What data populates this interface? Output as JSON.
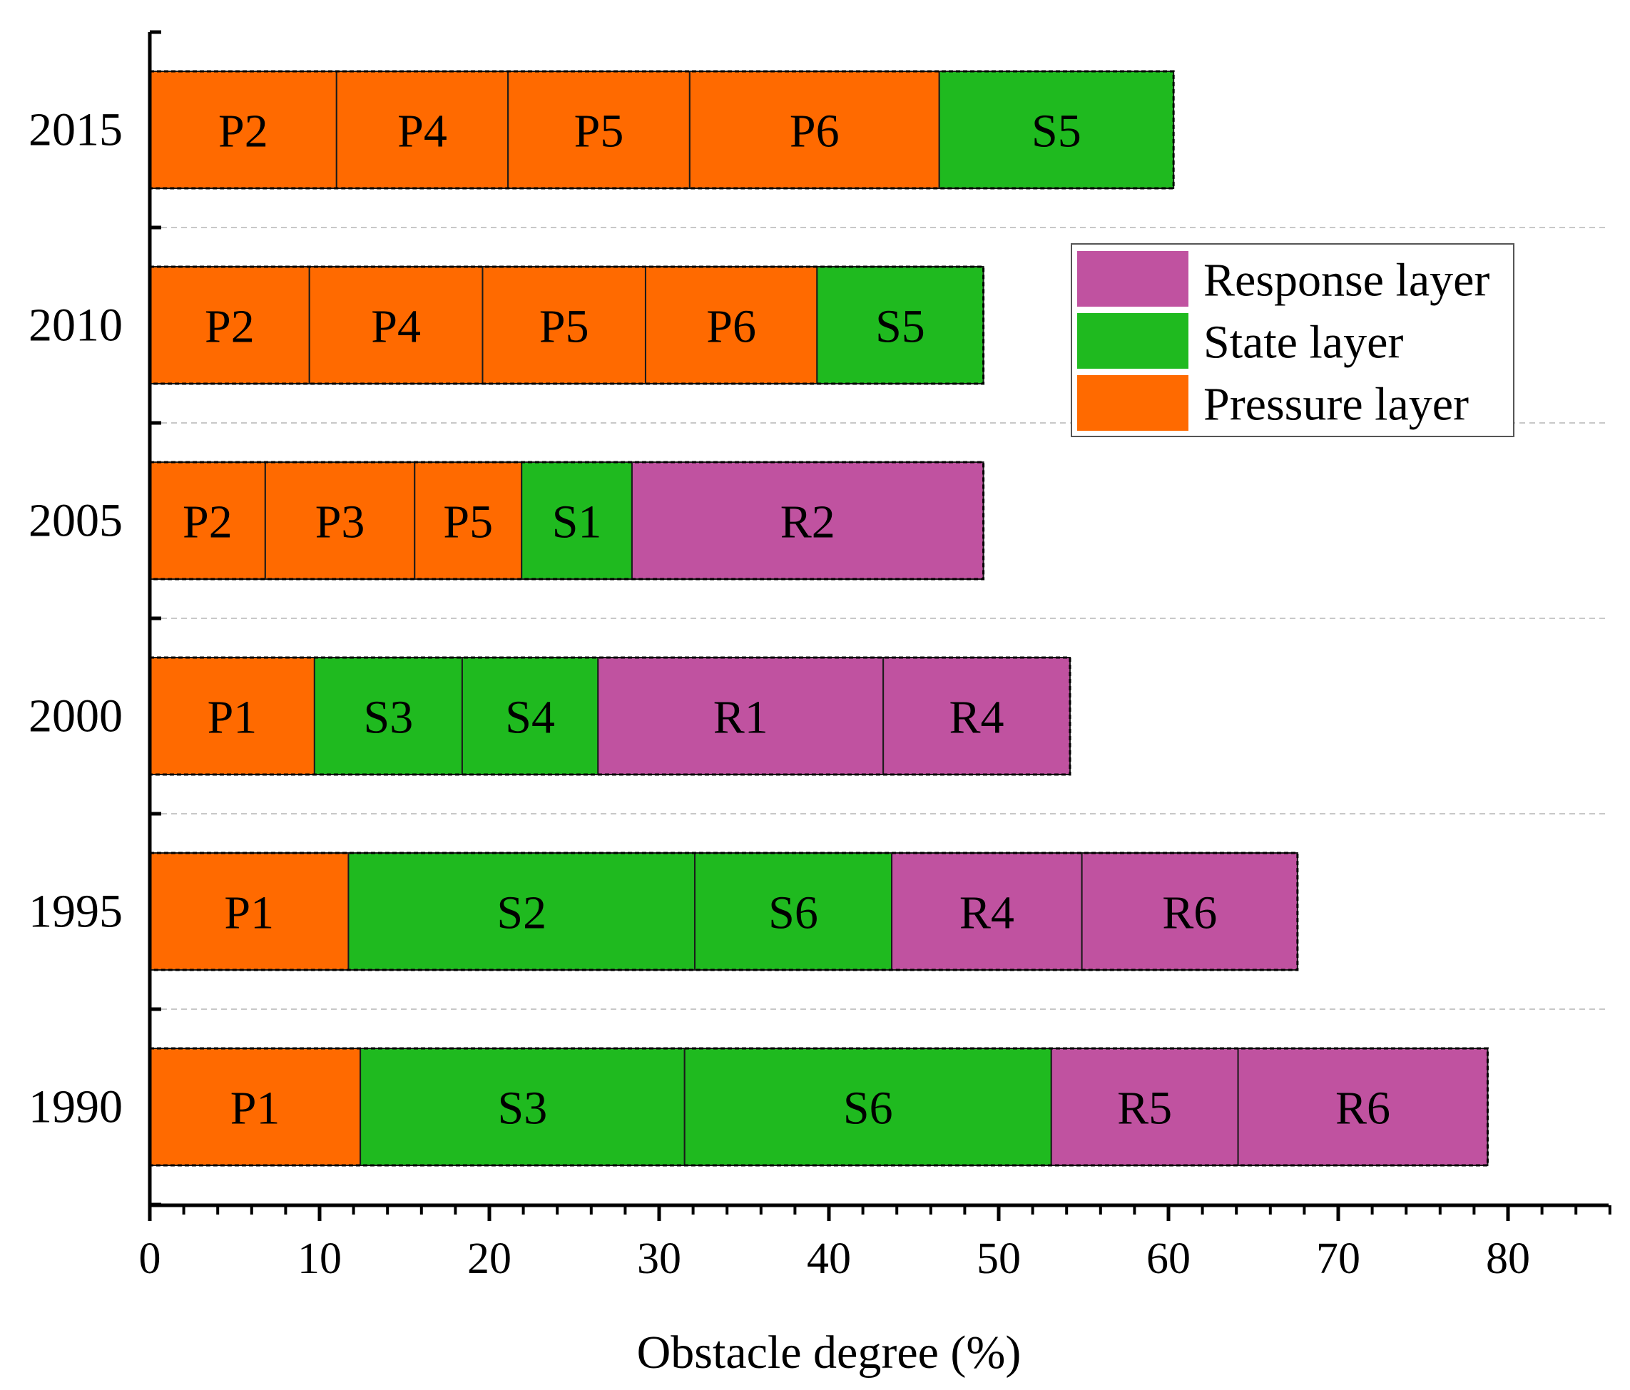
{
  "chart_data": {
    "type": "bar",
    "orientation": "horizontal",
    "stacked": true,
    "xlabel": "Obstacle degree (%)",
    "ylabel": "",
    "xlim": [
      0,
      86
    ],
    "xticks": [
      "0",
      "10",
      "20",
      "30",
      "40",
      "50",
      "60",
      "70",
      "80"
    ],
    "grid": "horizontal dashed separators between bars",
    "legend_position": "top-right",
    "layers": {
      "pressure": {
        "name": "Pressure layer",
        "color": "#ff6a00"
      },
      "state": {
        "name": "State layer",
        "color": "#1fba1f"
      },
      "response": {
        "name": "Response layer",
        "color": "#c052a0"
      }
    },
    "legend": [
      {
        "layer": "response",
        "label": "Response layer"
      },
      {
        "layer": "state",
        "label": "State layer"
      },
      {
        "layer": "pressure",
        "label": "Pressure layer"
      }
    ],
    "bars": [
      {
        "year": "2015",
        "segments": [
          {
            "label": "P2",
            "layer": "pressure",
            "value": 11.0
          },
          {
            "label": "P4",
            "layer": "pressure",
            "value": 10.1
          },
          {
            "label": "P5",
            "layer": "pressure",
            "value": 10.7
          },
          {
            "label": "P6",
            "layer": "pressure",
            "value": 14.7
          },
          {
            "label": "S5",
            "layer": "state",
            "value": 13.8
          }
        ]
      },
      {
        "year": "2010",
        "segments": [
          {
            "label": "P2",
            "layer": "pressure",
            "value": 9.4
          },
          {
            "label": "P4",
            "layer": "pressure",
            "value": 10.2
          },
          {
            "label": "P5",
            "layer": "pressure",
            "value": 9.6
          },
          {
            "label": "P6",
            "layer": "pressure",
            "value": 10.1
          },
          {
            "label": "S5",
            "layer": "state",
            "value": 9.8
          }
        ]
      },
      {
        "year": "2005",
        "segments": [
          {
            "label": "P2",
            "layer": "pressure",
            "value": 6.8
          },
          {
            "label": "P3",
            "layer": "pressure",
            "value": 8.8
          },
          {
            "label": "P5",
            "layer": "pressure",
            "value": 6.3
          },
          {
            "label": "S1",
            "layer": "state",
            "value": 6.5
          },
          {
            "label": "R2",
            "layer": "response",
            "value": 20.7
          }
        ]
      },
      {
        "year": "2000",
        "segments": [
          {
            "label": "P1",
            "layer": "pressure",
            "value": 9.7
          },
          {
            "label": "S3",
            "layer": "state",
            "value": 8.7
          },
          {
            "label": "S4",
            "layer": "state",
            "value": 8.0
          },
          {
            "label": "R1",
            "layer": "response",
            "value": 16.8
          },
          {
            "label": "R4",
            "layer": "response",
            "value": 11.0
          }
        ]
      },
      {
        "year": "1995",
        "segments": [
          {
            "label": "P1",
            "layer": "pressure",
            "value": 11.7
          },
          {
            "label": "S2",
            "layer": "state",
            "value": 20.4
          },
          {
            "label": "S6",
            "layer": "state",
            "value": 11.6
          },
          {
            "label": "R4",
            "layer": "response",
            "value": 11.2
          },
          {
            "label": "R6",
            "layer": "response",
            "value": 12.7
          }
        ]
      },
      {
        "year": "1990",
        "segments": [
          {
            "label": "P1",
            "layer": "pressure",
            "value": 12.4
          },
          {
            "label": "S3",
            "layer": "state",
            "value": 19.1
          },
          {
            "label": "S6",
            "layer": "state",
            "value": 21.6
          },
          {
            "label": "R5",
            "layer": "response",
            "value": 11.0
          },
          {
            "label": "R6",
            "layer": "response",
            "value": 14.7
          }
        ]
      }
    ]
  }
}
